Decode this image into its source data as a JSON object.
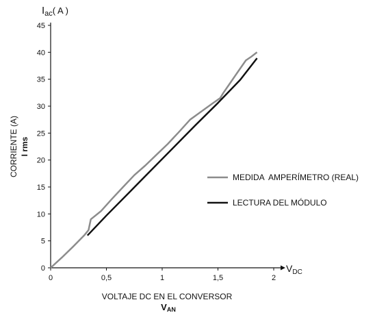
{
  "chart_data": {
    "type": "line",
    "x_unit_label": "V",
    "x_unit_sub": "DC",
    "y_unit_label": "I",
    "y_unit_sub": "ac",
    "y_unit_suffix": "( A )",
    "xlabel": "VOLTAJE DC EN EL CONVERSOR",
    "xlabel2_main": "V",
    "xlabel2_sub": "AN",
    "ylabel": "CORRIENTE (A)",
    "ylabel2": "I rms",
    "xlim": [
      0,
      2
    ],
    "ylim": [
      0,
      45
    ],
    "x_ticks": [
      0,
      0.5,
      1,
      1.5,
      2
    ],
    "x_tick_labels": [
      "0",
      "0,5",
      "1",
      "1,5",
      "2"
    ],
    "y_ticks": [
      0,
      5,
      10,
      15,
      20,
      25,
      30,
      35,
      40,
      45
    ],
    "y_tick_labels": [
      "0",
      "5",
      "10",
      "15",
      "20",
      "25",
      "30",
      "35",
      "40",
      "45"
    ],
    "grid": false,
    "legend_position": "right",
    "series": [
      {
        "name": "MEDIDA  AMPERÍMETRO (REAL)",
        "color": "#8c8c8c",
        "x": [
          0,
          0.1,
          0.2,
          0.3,
          0.34,
          0.36,
          0.45,
          0.55,
          0.65,
          0.75,
          0.85,
          0.95,
          1.05,
          1.15,
          1.25,
          1.35,
          1.45,
          1.52,
          1.55,
          1.6,
          1.65,
          1.7,
          1.75,
          1.8,
          1.85
        ],
        "y": [
          0,
          1.9,
          3.9,
          6.0,
          7.0,
          9.0,
          10.5,
          12.8,
          15.0,
          17.2,
          19.0,
          21.0,
          23.0,
          25.2,
          27.5,
          29.0,
          30.5,
          31.5,
          32.5,
          34.0,
          35.5,
          37.0,
          38.5,
          39.2,
          40.0
        ]
      },
      {
        "name": "LECTURA DEL MÓDULO",
        "color": "#111111",
        "x": [
          0.33,
          0.5,
          0.7,
          0.9,
          1.1,
          1.3,
          1.5,
          1.7,
          1.85
        ],
        "y": [
          6.0,
          9.7,
          13.9,
          18.1,
          22.3,
          26.5,
          30.6,
          34.9,
          38.9
        ]
      }
    ]
  }
}
